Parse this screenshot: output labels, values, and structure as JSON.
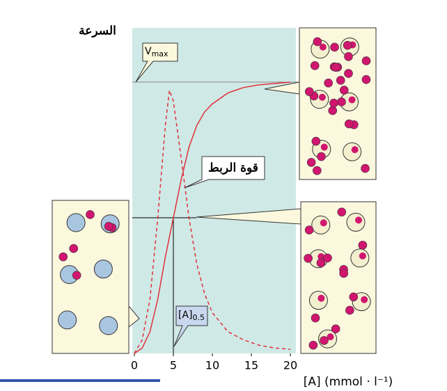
{
  "chart_data": {
    "type": "line",
    "y_label": "السرعة",
    "x_label": "[A] (mmol · l⁻¹)",
    "vmax_label": [
      "V",
      "max"
    ],
    "binding_label": "قوة الربط",
    "half_label": [
      "[A]",
      "0.5"
    ],
    "vmax": 1,
    "half_x": 5,
    "xlim": [
      0,
      20
    ],
    "xticks": [
      0,
      5,
      10,
      15,
      20
    ],
    "ylim": [
      0,
      1.2
    ],
    "series": [
      {
        "color": "#e0303a",
        "style": "solid",
        "x": [
          0,
          1,
          2,
          3,
          4,
          5,
          6,
          7,
          8,
          9,
          10,
          12,
          14,
          16,
          18,
          20
        ],
        "values": [
          0,
          0.02,
          0.08,
          0.2,
          0.36,
          0.5,
          0.64,
          0.76,
          0.84,
          0.89,
          0.92,
          0.96,
          0.98,
          0.99,
          0.995,
          1
        ]
      },
      {
        "color": "#e0303a",
        "style": "dashed",
        "x": [
          0,
          1,
          2,
          3,
          4,
          4.5,
          5,
          6,
          7,
          8,
          9,
          10,
          12,
          14,
          16,
          18,
          20
        ],
        "values": [
          0,
          0.05,
          0.2,
          0.5,
          0.85,
          0.97,
          0.93,
          0.72,
          0.5,
          0.33,
          0.22,
          0.15,
          0.08,
          0.05,
          0.03,
          0.02,
          0.015
        ]
      }
    ]
  }
}
